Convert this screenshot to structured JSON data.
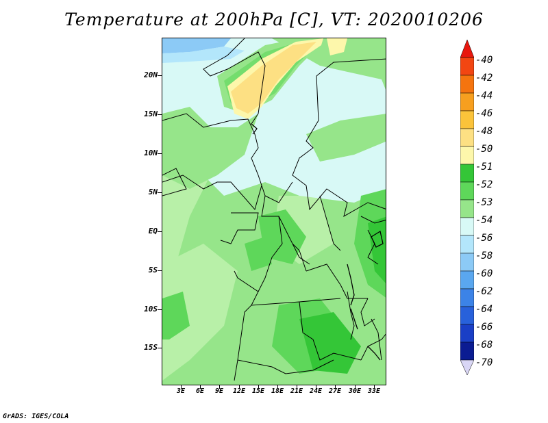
{
  "title": "Temperature at 200hPa [C], VT: 2020010206",
  "credit": "GrADS: IGES/COLA",
  "map": {
    "lat_labels": [
      "20N",
      "15N",
      "10N",
      "5N",
      "EQ",
      "5S",
      "10S",
      "15S"
    ],
    "lon_labels": [
      "3E",
      "6E",
      "9E",
      "12E",
      "15E",
      "18E",
      "21E",
      "24E",
      "27E",
      "30E",
      "33E"
    ]
  },
  "colorbar": {
    "labels": [
      "-40",
      "-42",
      "-44",
      "-46",
      "-48",
      "-50",
      "-51",
      "-52",
      "-53",
      "-54",
      "-56",
      "-58",
      "-60",
      "-62",
      "-64",
      "-66",
      "-68",
      "-70"
    ],
    "colors": [
      "#e8170e",
      "#f24612",
      "#f5740f",
      "#f79f1f",
      "#fbc33a",
      "#fde083",
      "#fdf7ab",
      "#34c637",
      "#5ed75a",
      "#96e58a",
      "#d8f9f6",
      "#b3e6fb",
      "#8ccaf6",
      "#5aa7ef",
      "#3c83e7",
      "#2861db",
      "#1a3fc6",
      "#0b1c92",
      "#d9d6f5"
    ]
  },
  "colors": {
    "field_base": "#96e58a",
    "field_dark_green": "#5ed75a",
    "field_darkest_green": "#34c637",
    "field_light_green": "#b8f0a8",
    "field_pale": "#d8f9f6",
    "field_yellow": "#fde083",
    "field_light_yellow": "#fdf7ab",
    "field_blue": "#8ccaf6"
  }
}
